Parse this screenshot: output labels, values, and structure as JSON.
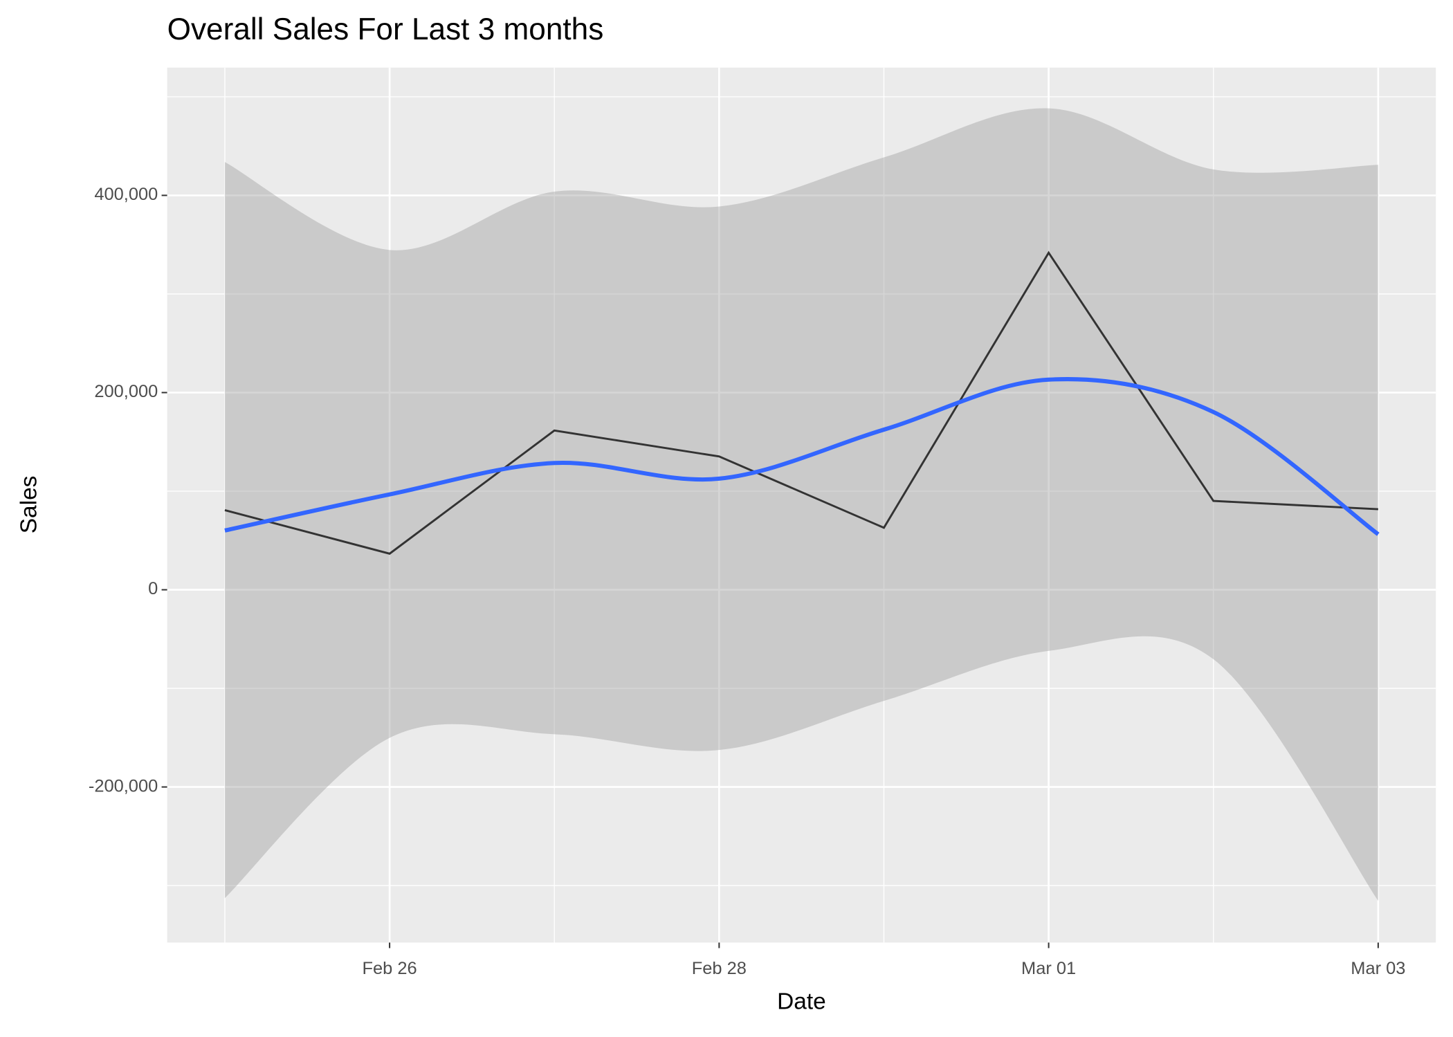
{
  "chart_data": {
    "type": "line",
    "title": "Overall Sales For Last 3 months",
    "x_label": "Date",
    "y_label": "Sales",
    "x": [
      "Feb 25",
      "Feb 26",
      "Feb 27",
      "Feb 28",
      "Feb 29",
      "Mar 01",
      "Mar 02",
      "Mar 03"
    ],
    "xticks": [
      "Feb 26",
      "Feb 28",
      "Mar 01",
      "Mar 03"
    ],
    "values": [
      80750,
      36600,
      161500,
      135200,
      62900,
      341800,
      90100,
      81700
    ],
    "color": "#333333",
    "smooth": {
      "color": "#3366FF",
      "band_color": "#999999",
      "values": [
        60100,
        96700,
        128600,
        112700,
        162400,
        213100,
        180300,
        56300
      ],
      "upper": [
        433800,
        344600,
        403800,
        388700,
        438500,
        488300,
        426300,
        431000
      ],
      "lower": [
        -312700,
        -150200,
        -146500,
        -162500,
        -112700,
        -62000,
        -70400,
        -315500
      ]
    },
    "ylim": [
      -357800,
      529600
    ],
    "yticks": [
      {
        "value": -200000,
        "label": "-200,000"
      },
      0,
      {
        "value": 200000,
        "label": "200,000"
      },
      {
        "value": 400000,
        "label": "400,000"
      }
    ],
    "grid": true
  }
}
